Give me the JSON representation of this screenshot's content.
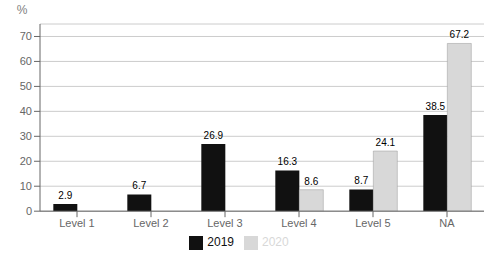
{
  "chart_data": {
    "type": "bar",
    "categories": [
      "Level 1",
      "Level 2",
      "Level 3",
      "Level 4",
      "Level 5",
      "NA"
    ],
    "series": [
      {
        "name": "2019",
        "color": "#111111",
        "values": [
          2.9,
          6.7,
          26.9,
          16.3,
          8.7,
          38.5
        ]
      },
      {
        "name": "2020",
        "color": "#d8d8d8",
        "values": [
          0,
          0,
          0,
          8.6,
          24.1,
          67.2
        ]
      }
    ],
    "y_label": "%",
    "ylim": [
      0,
      75
    ],
    "yticks": [
      0,
      10,
      20,
      30,
      40,
      50,
      60,
      70
    ],
    "grid": true,
    "legend": "bottom",
    "data_labels": true
  }
}
